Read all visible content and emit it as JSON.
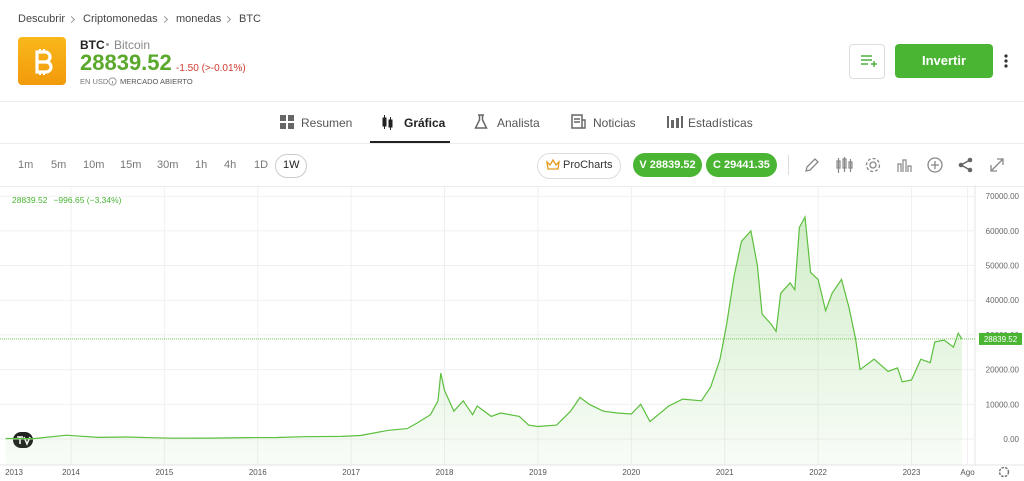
{
  "breadcrumb": [
    "Descubrir",
    "Criptomonedas",
    "monedas",
    "BTC"
  ],
  "header": {
    "symbol": "BTC",
    "name": "Bitcoin",
    "price": "28839.52",
    "change": "-1.50 (>-0.01%)",
    "currency": "EN USD",
    "market_status": "MERCADO ABIERTO",
    "invest_button": "Invertir"
  },
  "tabs": [
    "Resumen",
    "Gráfica",
    "Analista",
    "Noticias",
    "Estadísticas"
  ],
  "active_tab": 1,
  "timeframes": [
    "1m",
    "5m",
    "10m",
    "15m",
    "30m",
    "1h",
    "4h",
    "1D",
    "1W"
  ],
  "selected_timeframe": 8,
  "toolbar": {
    "procharts": "ProCharts",
    "sell": "V 28839.52",
    "buy": "C 29441.35"
  },
  "chart_data": {
    "type": "area",
    "color": "#5cbf3e",
    "info_change": "−996.65 (−3.34%)",
    "x": [
      2013.3,
      2013.6,
      2013.85,
      2013.95,
      2014.1,
      2014.3,
      2014.6,
      2014.9,
      2015.1,
      2015.5,
      2015.9,
      2016.2,
      2016.5,
      2016.9,
      2017.1,
      2017.4,
      2017.6,
      2017.7,
      2017.85,
      2017.93,
      2017.96,
      2018.0,
      2018.1,
      2018.2,
      2018.3,
      2018.35,
      2018.5,
      2018.6,
      2018.8,
      2018.9,
      2019.0,
      2019.2,
      2019.35,
      2019.45,
      2019.55,
      2019.7,
      2019.85,
      2020.0,
      2020.1,
      2020.2,
      2020.4,
      2020.55,
      2020.75,
      2020.85,
      2020.95,
      2021.02,
      2021.1,
      2021.18,
      2021.28,
      2021.35,
      2021.4,
      2021.5,
      2021.55,
      2021.6,
      2021.7,
      2021.75,
      2021.8,
      2021.86,
      2021.92,
      2022.0,
      2022.08,
      2022.15,
      2022.25,
      2022.33,
      2022.4,
      2022.45,
      2022.6,
      2022.75,
      2022.85,
      2022.9,
      2023.0,
      2023.1,
      2023.2,
      2023.25,
      2023.35,
      2023.45,
      2023.5,
      2023.54
    ],
    "values": [
      130,
      100,
      800,
      1100,
      800,
      450,
      580,
      350,
      230,
      250,
      400,
      420,
      650,
      750,
      1000,
      2500,
      3000,
      4500,
      7000,
      11000,
      19000,
      14000,
      8000,
      11000,
      7000,
      9500,
      6500,
      7500,
      6500,
      4000,
      3600,
      4000,
      8000,
      12000,
      10000,
      8000,
      7500,
      7200,
      10000,
      5000,
      9500,
      11500,
      11000,
      15000,
      23000,
      33000,
      47000,
      57000,
      60000,
      50000,
      36000,
      33000,
      31000,
      42000,
      45000,
      43000,
      61000,
      64000,
      48000,
      46000,
      37000,
      42000,
      46000,
      38000,
      29000,
      20000,
      23000,
      19500,
      20500,
      16500,
      17000,
      23000,
      22000,
      28000,
      28500,
      26500,
      30500,
      28839.52
    ],
    "xlim": [
      2013.24,
      2023.68
    ],
    "xticks": [
      2013,
      2014,
      2015,
      2016,
      2017,
      2018,
      2019,
      2020,
      2021,
      2022,
      2023,
      {
        "value": 2023.6,
        "label": "Ago"
      }
    ],
    "ylim": [
      -7500,
      72650
    ],
    "yticks": [
      {
        "value": 0,
        "label": "0.00"
      },
      {
        "value": 10000,
        "label": "10000.00"
      },
      {
        "value": 20000,
        "label": "20000.00"
      },
      {
        "value": 30000,
        "label": "30000.00"
      },
      {
        "value": 40000,
        "label": "40000.00"
      },
      {
        "value": 50000,
        "label": "50000.00"
      },
      {
        "value": 60000,
        "label": "60000.00"
      },
      {
        "value": 70000,
        "label": "70000.00"
      }
    ],
    "grid": true
  }
}
